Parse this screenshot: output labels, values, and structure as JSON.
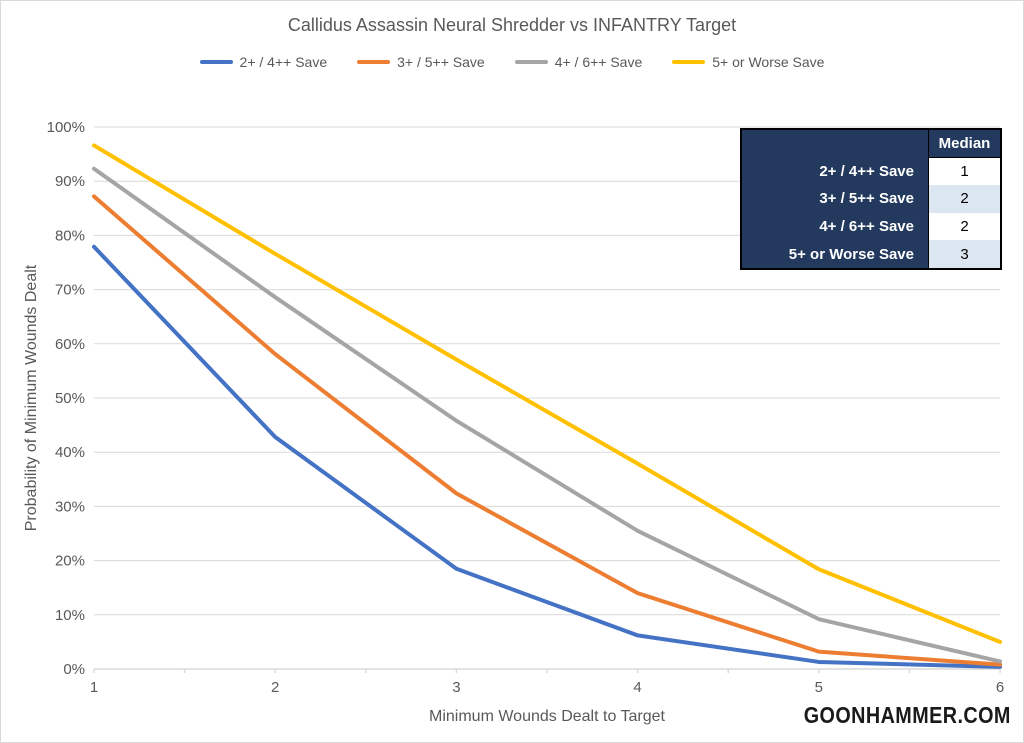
{
  "title": "Callidus Assassin Neural Shredder vs INFANTRY Target",
  "watermark": "GOONHAMMER.COM",
  "chart_data": {
    "type": "line",
    "title": "Callidus Assassin Neural Shredder vs INFANTRY Target",
    "xlabel": "Minimum Wounds Dealt to Target",
    "ylabel": "Probability of Minimum Wounds Dealt",
    "x": [
      1,
      2,
      3,
      4,
      5,
      6
    ],
    "xlim": [
      1,
      6
    ],
    "ylim": [
      0,
      100
    ],
    "y_tick_step": 10,
    "y_tick_labels": [
      "0%",
      "10%",
      "20%",
      "30%",
      "40%",
      "50%",
      "60%",
      "70%",
      "80%",
      "90%",
      "100%"
    ],
    "x_tick_labels": [
      "1",
      "2",
      "3",
      "4",
      "5",
      "6"
    ],
    "grid": "horizontal",
    "legend_position": "top",
    "gridline_color": "#d9d9d9",
    "axis_text_color": "#595959",
    "series": [
      {
        "name": "2+ / 4++ Save",
        "color": "#4472c4",
        "values": [
          77.9,
          42.8,
          18.5,
          6.2,
          1.3,
          0.4
        ]
      },
      {
        "name": "3+ / 5++ Save",
        "color": "#ed7d31",
        "values": [
          87.2,
          58.1,
          32.4,
          14.0,
          3.2,
          0.8
        ]
      },
      {
        "name": "4+ / 6++ Save",
        "color": "#a5a5a5",
        "values": [
          92.3,
          68.6,
          45.8,
          25.5,
          9.2,
          1.4
        ]
      },
      {
        "name": "5+ or Worse Save",
        "color": "#ffc000",
        "values": [
          96.6,
          76.6,
          57.1,
          37.9,
          18.4,
          5.0
        ]
      }
    ]
  },
  "median_table": {
    "header": "Median",
    "rows": [
      {
        "label": "2+ / 4++ Save",
        "value": "1"
      },
      {
        "label": "3+ / 5++ Save",
        "value": "2"
      },
      {
        "label": "4+ / 6++ Save",
        "value": "2"
      },
      {
        "label": "5+ or Worse Save",
        "value": "3"
      }
    ],
    "colors": {
      "table_bg": "#233a5e",
      "alt_row_bg": "#dce6f1",
      "header_text": "#ffffff",
      "value_text": "#000000"
    }
  }
}
